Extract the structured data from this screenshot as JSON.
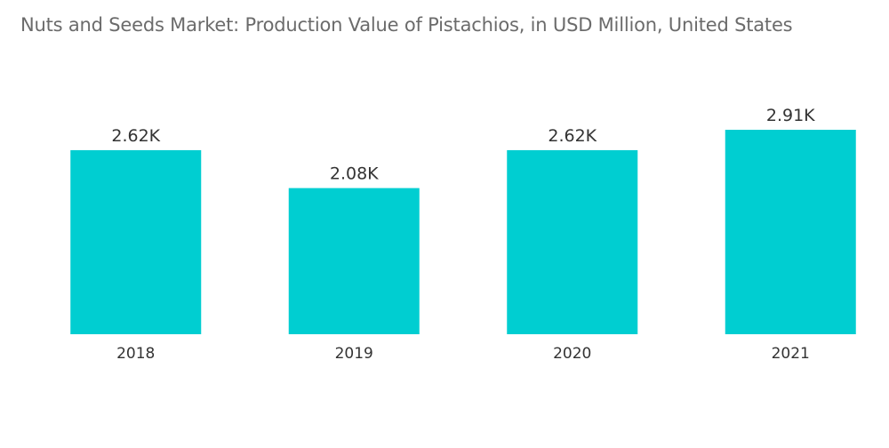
{
  "chart_data": {
    "type": "bar",
    "title": "Nuts and Seeds Market: Production Value of Pistachios, in USD Million, United States",
    "categories": [
      "2018",
      "2019",
      "2020",
      "2021"
    ],
    "values": [
      2620,
      2080,
      2620,
      2910
    ],
    "data_labels": [
      "2.62K",
      "2.08K",
      "2.62K",
      "2.91K"
    ],
    "xlabel": "",
    "ylabel": "",
    "ylim": [
      0,
      2910
    ],
    "grid": false,
    "legend": "none",
    "bar_color": "#00CED1"
  }
}
